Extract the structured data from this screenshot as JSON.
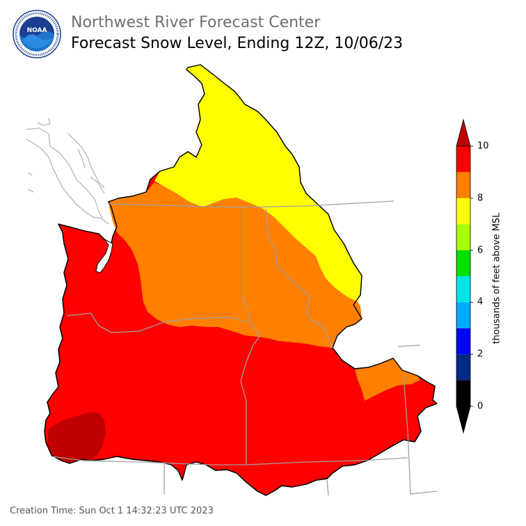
{
  "header": {
    "org_title": "Northwest River Forecast Center",
    "map_title": "Forecast Snow Level, Ending 12Z, 10/06/23"
  },
  "logo": {
    "icon": "noaa-logo-icon",
    "text": "NOAA",
    "ring_text": "NATIONAL OCEANIC AND ATMOSPHERIC ADMINISTRATION · U.S. DEPARTMENT OF COMMERCE"
  },
  "footer": {
    "creation_time": "Creation Time: Sun Oct 1 14:32:23 UTC 2023"
  },
  "colorbar": {
    "label": "thousands of feet above MSL",
    "min": 0,
    "max": 10,
    "ticks": [
      "0",
      "2",
      "4",
      "6",
      "8",
      "10"
    ],
    "bins": [
      {
        "from": 0,
        "to": 1,
        "color": "#000000"
      },
      {
        "from": 1,
        "to": 2,
        "color": "#002a85"
      },
      {
        "from": 2,
        "to": 3,
        "color": "#0000ff"
      },
      {
        "from": 3,
        "to": 4,
        "color": "#00aaff"
      },
      {
        "from": 4,
        "to": 5,
        "color": "#00e5e5"
      },
      {
        "from": 5,
        "to": 6,
        "color": "#00e000"
      },
      {
        "from": 6,
        "to": 7,
        "color": "#aaff00"
      },
      {
        "from": 7,
        "to": 8,
        "color": "#ffff00"
      },
      {
        "from": 8,
        "to": 9,
        "color": "#ff8000"
      },
      {
        "from": 9,
        "to": 10,
        "color": "#ff0000"
      }
    ],
    "under_color": "#000000",
    "over_color": "#c00000"
  },
  "map_colors": {
    "band_7_8": "#ffff00",
    "band_8_9": "#ff8000",
    "band_9_10": "#ff0000",
    "band_over_10": "#c00000",
    "boundaries": "#a0a0a0",
    "coast": "#000000"
  }
}
